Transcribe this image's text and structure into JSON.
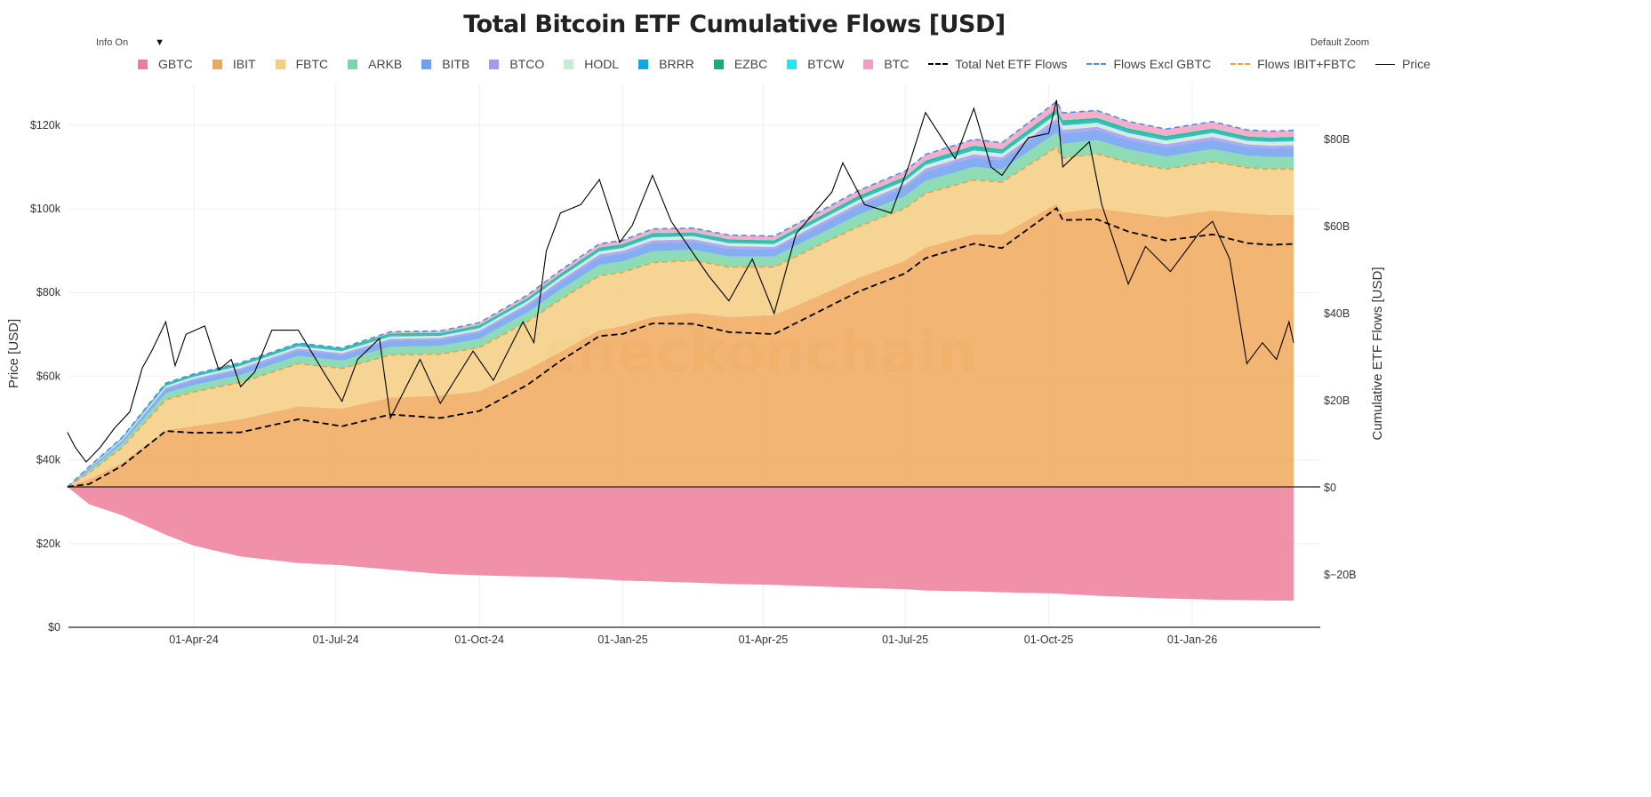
{
  "title": "Total Bitcoin ETF Cumulative Flows [USD]",
  "controls": {
    "info_label": "Info On",
    "info_arrow": "▼",
    "zoom_label": "Default Zoom"
  },
  "watermark": "checkonchain",
  "colors": {
    "GBTC": "#ef7d9a",
    "IBIT": "#f0a85a",
    "FBTC": "#f5cd80",
    "ARKB": "#79d6a8",
    "BITB": "#6ea0ee",
    "BTCO": "#a797ef",
    "HODL": "#c8ecd7",
    "BRRR": "#11a8e0",
    "EZBC": "#10b27a",
    "BTCW": "#1de9f0",
    "BTC": "#f59dc2",
    "total": "#000000",
    "excl_gbtc": "#4a90e2",
    "ibit_fbtc": "#f0a040",
    "price": "#000000"
  },
  "legend": {
    "items": [
      "GBTC",
      "IBIT",
      "FBTC",
      "ARKB",
      "BITB",
      "BTCO",
      "HODL",
      "BRRR",
      "EZBC",
      "BTCW",
      "BTC",
      "Total Net ETF Flows",
      "Flows Excl GBTC",
      "Flows IBIT+FBTC",
      "Price"
    ]
  },
  "chart_data": {
    "type": "area",
    "title": "Total Bitcoin ETF Cumulative Flows [USD]",
    "ylabel_left": "Price [USD]",
    "ylabel_right": "Cumulative ETF Flows [USD]",
    "ylim_left": [
      0,
      130000
    ],
    "ylim_right": [
      -32,
      91
    ],
    "yticks_left": [
      "$0",
      "$20k",
      "$40k",
      "$60k",
      "$80k",
      "$100k",
      "$120k"
    ],
    "yticks_left_values": [
      0,
      20,
      40,
      60,
      80,
      100,
      120
    ],
    "yticks_right": [
      "$−20B",
      "$0",
      "$20B",
      "$40B",
      "$60B",
      "$80B"
    ],
    "yticks_right_values": [
      -20,
      0,
      20,
      40,
      60,
      80
    ],
    "xticks": [
      "01-Apr-24",
      "01-Jul-24",
      "01-Oct-24",
      "01-Jan-25",
      "01-Apr-25",
      "01-Jul-25",
      "01-Oct-25",
      "01-Jan-26"
    ],
    "xticks_dates": [
      "2024-04-01",
      "2024-07-01",
      "2024-10-01",
      "2025-01-01",
      "2025-04-01",
      "2025-07-01",
      "2025-10-01",
      "2026-01-01"
    ],
    "legend_position": "top",
    "grid": true,
    "flow_dates": [
      "2024-01-11",
      "2024-01-25",
      "2024-02-15",
      "2024-03-14",
      "2024-04-01",
      "2024-05-01",
      "2024-06-07",
      "2024-07-05",
      "2024-08-05",
      "2024-09-06",
      "2024-10-01",
      "2024-11-01",
      "2024-11-22",
      "2024-12-17",
      "2025-01-01",
      "2025-01-20",
      "2025-02-15",
      "2025-03-10",
      "2025-04-08",
      "2025-05-01",
      "2025-06-01",
      "2025-07-01",
      "2025-07-14",
      "2025-08-14",
      "2025-09-01",
      "2025-10-06",
      "2025-10-10",
      "2025-11-01",
      "2025-11-21",
      "2025-12-15",
      "2026-01-14",
      "2026-02-05",
      "2026-02-20",
      "2026-03-07"
    ],
    "series": [
      {
        "name": "GBTC",
        "unit": "USD bn",
        "values": [
          0,
          -4,
          -6.5,
          -11,
          -13.5,
          -16,
          -17.5,
          -18,
          -19,
          -20,
          -20.3,
          -20.6,
          -20.8,
          -21.2,
          -21.5,
          -21.7,
          -22,
          -22.3,
          -22.5,
          -22.8,
          -23.2,
          -23.5,
          -23.8,
          -24,
          -24.2,
          -24.5,
          -24.6,
          -25,
          -25.3,
          -25.6,
          -25.9,
          -26,
          -26.1,
          -26.1
        ]
      },
      {
        "name": "IBIT",
        "unit": "USD bn",
        "values": [
          0,
          1.8,
          5.5,
          13,
          14,
          15.5,
          18.5,
          18,
          20.5,
          21,
          22,
          27,
          31,
          36,
          37,
          39,
          40,
          39,
          39.5,
          43,
          48,
          52,
          55,
          58,
          58,
          65,
          63,
          64,
          63,
          62,
          63.5,
          62.8,
          62.5,
          62.5
        ]
      },
      {
        "name": "FBTC",
        "unit": "USD bn",
        "values": [
          0,
          1.5,
          3.5,
          7,
          7.8,
          8.5,
          9.8,
          9.2,
          9.8,
          9.5,
          10,
          11,
          12,
          12.5,
          12.3,
          12.5,
          12,
          11.5,
          11,
          11.5,
          11.8,
          12,
          12.4,
          12.5,
          12,
          13,
          12.5,
          12.5,
          11.5,
          11,
          11.2,
          10.5,
          10.5,
          10.5
        ]
      },
      {
        "name": "ARKB",
        "unit": "USD bn",
        "values": [
          0,
          0.5,
          0.9,
          1.5,
          1.6,
          1.7,
          1.8,
          1.8,
          1.9,
          1.9,
          2,
          2.1,
          2.3,
          2.5,
          2.5,
          2.6,
          2.5,
          2.4,
          2.4,
          2.5,
          2.7,
          2.8,
          2.9,
          3,
          2.9,
          3.4,
          3.3,
          3.2,
          3,
          2.9,
          2.9,
          2.8,
          2.8,
          2.8
        ]
      },
      {
        "name": "BITB",
        "unit": "USD bn",
        "values": [
          0,
          0.4,
          0.6,
          1,
          1.1,
          1.2,
          1.3,
          1.3,
          1.4,
          1.4,
          1.5,
          1.5,
          1.7,
          1.8,
          1.8,
          1.9,
          1.8,
          1.8,
          1.7,
          1.8,
          2,
          2.1,
          2.1,
          2.2,
          2.1,
          2.4,
          2.4,
          2.3,
          2.2,
          2.1,
          2.1,
          2,
          2,
          2.1
        ]
      },
      {
        "name": "BTCO",
        "unit": "USD bn",
        "values": [
          0,
          0.1,
          0.2,
          0.3,
          0.35,
          0.4,
          0.4,
          0.4,
          0.4,
          0.4,
          0.4,
          0.5,
          0.5,
          0.6,
          0.6,
          0.6,
          0.6,
          0.6,
          0.5,
          0.6,
          0.6,
          0.6,
          0.7,
          0.7,
          0.7,
          0.8,
          0.8,
          0.7,
          0.7,
          0.7,
          0.7,
          0.6,
          0.6,
          0.6
        ]
      },
      {
        "name": "HODL",
        "unit": "USD bn",
        "values": [
          0,
          0.15,
          0.3,
          0.4,
          0.45,
          0.5,
          0.5,
          0.5,
          0.55,
          0.5,
          0.55,
          0.6,
          0.65,
          0.7,
          0.7,
          0.75,
          0.7,
          0.7,
          0.7,
          0.7,
          0.8,
          0.8,
          0.85,
          0.9,
          0.85,
          1,
          1,
          0.95,
          0.9,
          0.9,
          0.9,
          0.85,
          0.85,
          0.9
        ]
      },
      {
        "name": "BRRR",
        "unit": "USD bn",
        "values": [
          0,
          0.1,
          0.15,
          0.25,
          0.25,
          0.3,
          0.3,
          0.3,
          0.3,
          0.3,
          0.3,
          0.3,
          0.35,
          0.35,
          0.35,
          0.4,
          0.35,
          0.35,
          0.35,
          0.35,
          0.4,
          0.4,
          0.4,
          0.45,
          0.4,
          0.5,
          0.5,
          0.45,
          0.45,
          0.4,
          0.4,
          0.4,
          0.4,
          0.4
        ]
      },
      {
        "name": "EZBC",
        "unit": "USD bn",
        "values": [
          0,
          0.1,
          0.15,
          0.3,
          0.3,
          0.35,
          0.35,
          0.35,
          0.4,
          0.35,
          0.4,
          0.4,
          0.45,
          0.5,
          0.5,
          0.5,
          0.5,
          0.5,
          0.45,
          0.5,
          0.55,
          0.55,
          0.6,
          0.6,
          0.6,
          0.7,
          0.7,
          0.65,
          0.6,
          0.6,
          0.6,
          0.55,
          0.55,
          0.6
        ]
      },
      {
        "name": "BTCW",
        "unit": "USD bn",
        "values": [
          0,
          0.02,
          0.04,
          0.08,
          0.08,
          0.08,
          0.08,
          0.08,
          0.08,
          0.08,
          0.08,
          0.08,
          0.09,
          0.09,
          0.09,
          0.1,
          0.1,
          0.1,
          0.1,
          0.1,
          0.1,
          0.1,
          0.1,
          0.1,
          0.1,
          0.1,
          0.1,
          0.1,
          0.1,
          0.1,
          0.1,
          0.1,
          0.1,
          0.1
        ]
      },
      {
        "name": "BTC",
        "unit": "USD bn",
        "values": [
          0,
          0,
          0,
          0,
          0,
          0,
          0,
          0,
          0.3,
          0.4,
          0.5,
          0.6,
          0.7,
          0.8,
          0.8,
          0.9,
          0.9,
          0.9,
          0.9,
          1,
          1.1,
          1.2,
          1.3,
          1.4,
          1.4,
          1.6,
          1.6,
          1.6,
          1.5,
          1.5,
          1.5,
          1.4,
          1.4,
          1.4
        ]
      }
    ],
    "price_dates": [
      "2024-01-11",
      "2024-01-16",
      "2024-01-23",
      "2024-02-01",
      "2024-02-10",
      "2024-02-20",
      "2024-02-28",
      "2024-03-05",
      "2024-03-14",
      "2024-03-20",
      "2024-03-27",
      "2024-04-08",
      "2024-04-17",
      "2024-04-25",
      "2024-05-01",
      "2024-05-10",
      "2024-05-21",
      "2024-06-07",
      "2024-06-24",
      "2024-07-05",
      "2024-07-15",
      "2024-07-29",
      "2024-08-05",
      "2024-08-24",
      "2024-09-06",
      "2024-09-27",
      "2024-10-10",
      "2024-10-29",
      "2024-11-05",
      "2024-11-13",
      "2024-11-22",
      "2024-12-05",
      "2024-12-17",
      "2024-12-30",
      "2025-01-07",
      "2025-01-20",
      "2025-02-01",
      "2025-02-25",
      "2025-03-10",
      "2025-03-25",
      "2025-04-08",
      "2025-04-22",
      "2025-05-15",
      "2025-05-22",
      "2025-06-05",
      "2025-06-22",
      "2025-07-03",
      "2025-07-14",
      "2025-08-02",
      "2025-08-14",
      "2025-08-25",
      "2025-09-01",
      "2025-09-18",
      "2025-10-01",
      "2025-10-06",
      "2025-10-10",
      "2025-10-27",
      "2025-11-04",
      "2025-11-21",
      "2025-12-02",
      "2025-12-18",
      "2026-01-05",
      "2026-01-14",
      "2026-01-25",
      "2026-02-05",
      "2026-02-15",
      "2026-02-24",
      "2026-03-04",
      "2026-03-07"
    ],
    "price_values_k": [
      46.6,
      43,
      39.5,
      43,
      47.5,
      51.5,
      62,
      66,
      73,
      62.5,
      70,
      72,
      61.5,
      64,
      57.5,
      61,
      71,
      71,
      60.5,
      54,
      64,
      69,
      50,
      64,
      53.5,
      66,
      59,
      73,
      68,
      90,
      99,
      101,
      107,
      92,
      96,
      108,
      97,
      84,
      78,
      88,
      75,
      94,
      104,
      111,
      101,
      99,
      110,
      123,
      112,
      124,
      110,
      108,
      117,
      118,
      126,
      110,
      116,
      101,
      82,
      91,
      85,
      94,
      97,
      88,
      63,
      68,
      64,
      73,
      68
    ]
  }
}
